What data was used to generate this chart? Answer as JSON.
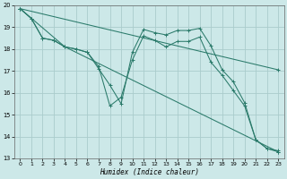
{
  "xlabel": "Humidex (Indice chaleur)",
  "bg_color": "#cce8e8",
  "grid_color": "#aacccc",
  "line_color": "#2a7a6a",
  "xlim": [
    -0.5,
    23.5
  ],
  "ylim": [
    13.0,
    20.0
  ],
  "yticks": [
    13,
    14,
    15,
    16,
    17,
    18,
    19,
    20
  ],
  "xticks": [
    0,
    1,
    2,
    3,
    4,
    5,
    6,
    7,
    8,
    9,
    10,
    11,
    12,
    13,
    14,
    15,
    16,
    17,
    18,
    19,
    20,
    21,
    22,
    23
  ],
  "line1_x": [
    0,
    1,
    2,
    3,
    4,
    5,
    6,
    7,
    8,
    9,
    10,
    11,
    12,
    13,
    14,
    15,
    16,
    17,
    18,
    19,
    20,
    21,
    22,
    23
  ],
  "line1_y": [
    19.85,
    19.4,
    18.5,
    18.4,
    18.1,
    18.0,
    17.85,
    17.1,
    16.35,
    15.5,
    17.85,
    18.9,
    18.75,
    18.65,
    18.85,
    18.85,
    18.95,
    18.15,
    17.05,
    16.5,
    15.55,
    13.85,
    13.45,
    13.35
  ],
  "line2_x": [
    0,
    1,
    2,
    3,
    4,
    5,
    6,
    7,
    8,
    9,
    10,
    11,
    12,
    13,
    14,
    15,
    16,
    17,
    18,
    19,
    20,
    21,
    22,
    23
  ],
  "line2_y": [
    19.85,
    19.4,
    18.5,
    18.4,
    18.1,
    18.0,
    17.85,
    17.2,
    15.4,
    15.8,
    17.5,
    18.6,
    18.4,
    18.1,
    18.35,
    18.35,
    18.55,
    17.4,
    16.8,
    16.1,
    15.4,
    13.85,
    13.45,
    13.3
  ],
  "line3_x": [
    0,
    4,
    23
  ],
  "line3_y": [
    19.85,
    18.1,
    13.3
  ],
  "line4_x": [
    0,
    23
  ],
  "line4_y": [
    19.85,
    17.05
  ]
}
